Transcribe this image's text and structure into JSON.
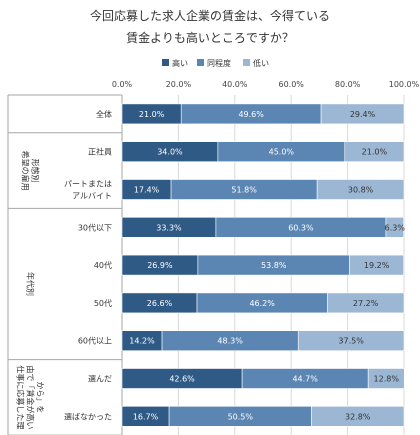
{
  "chart_data": {
    "type": "bar",
    "orientation": "horizontal",
    "stacked": true,
    "percent": true,
    "title_lines": [
      "今回応募した求人企業の賃金は、今得ている",
      "賃金よりも高いところですか？"
    ],
    "legend": [
      {
        "name": "高い",
        "color": "#2f5a85"
      },
      {
        "name": "同程度",
        "color": "#5b86b3"
      },
      {
        "name": "低い",
        "color": "#9bb7d4"
      }
    ],
    "xlim": [
      0,
      100
    ],
    "x_ticks": [
      "0.0%",
      "20.0%",
      "40.0%",
      "60.0%",
      "80.0%",
      "100.0%"
    ],
    "grid": true,
    "rows": [
      {
        "label": [
          "全体"
        ],
        "values": [
          21.0,
          49.6,
          29.4
        ],
        "labels": [
          "21.0%",
          "49.6%",
          "29.4%"
        ]
      },
      {
        "label": [
          "正社員"
        ],
        "values": [
          34.0,
          45.0,
          21.0
        ],
        "labels": [
          "34.0%",
          "45.0%",
          "21.0%"
        ]
      },
      {
        "label": [
          "パートまたは",
          "アルバイト"
        ],
        "values": [
          17.4,
          51.8,
          30.8
        ],
        "labels": [
          "17.4%",
          "51.8%",
          "30.8%"
        ]
      },
      {
        "label": [
          "30代以下"
        ],
        "values": [
          33.3,
          60.3,
          6.3
        ],
        "labels": [
          "33.3%",
          "60.3%",
          "6.3%"
        ]
      },
      {
        "label": [
          "40代"
        ],
        "values": [
          26.9,
          53.8,
          19.2
        ],
        "labels": [
          "26.9%",
          "53.8%",
          "19.2%"
        ]
      },
      {
        "label": [
          "50代"
        ],
        "values": [
          26.6,
          46.2,
          27.2
        ],
        "labels": [
          "26.6%",
          "46.2%",
          "27.2%"
        ]
      },
      {
        "label": [
          "60代以上"
        ],
        "values": [
          14.2,
          48.3,
          37.5
        ],
        "labels": [
          "14.2%",
          "48.3%",
          "37.5%"
        ]
      },
      {
        "label": [
          "選んだ"
        ],
        "values": [
          42.6,
          44.7,
          12.8
        ],
        "labels": [
          "42.6%",
          "44.7%",
          "12.8%"
        ]
      },
      {
        "label": [
          "選ばなかった"
        ],
        "values": [
          16.7,
          50.5,
          32.8
        ],
        "labels": [
          "16.7%",
          "50.5%",
          "32.8%"
        ]
      }
    ],
    "groups": [
      {
        "label": [
          "希望の雇用",
          "形態別"
        ],
        "rows": [
          1,
          2
        ]
      },
      {
        "label": [
          "年代別"
        ],
        "rows": [
          3,
          6
        ]
      },
      {
        "label": [
          "仕事に応募した理",
          "由で「賃金が高い",
          "から」を"
        ],
        "rows": [
          7,
          8
        ]
      }
    ]
  }
}
